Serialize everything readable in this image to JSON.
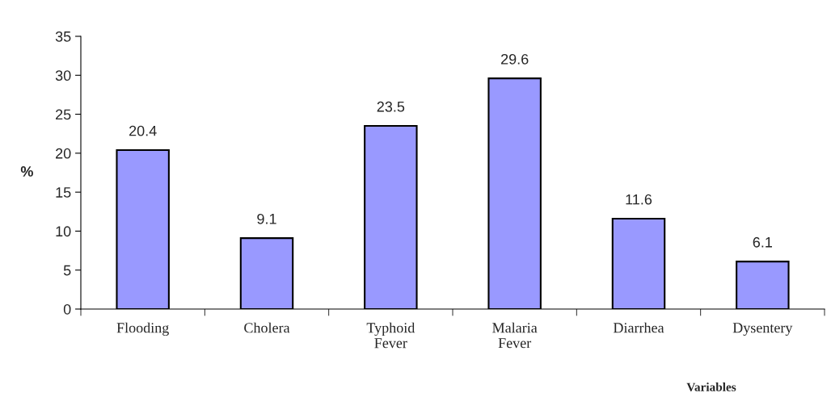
{
  "chart_data": {
    "type": "bar",
    "categories": [
      "Flooding",
      "Cholera",
      "Typhoid\nFever",
      "Malaria\nFever",
      "Diarrhea",
      "Dysentery"
    ],
    "values": [
      20.4,
      9.1,
      23.5,
      29.6,
      11.6,
      6.1
    ],
    "color": "#9999ff",
    "ylim": [
      0,
      35
    ],
    "yticks": [
      0,
      5,
      10,
      15,
      20,
      25,
      30,
      35
    ],
    "ylabel": "%",
    "xlabel": "Variables",
    "data_labels": true,
    "grid": false,
    "legend": false
  }
}
